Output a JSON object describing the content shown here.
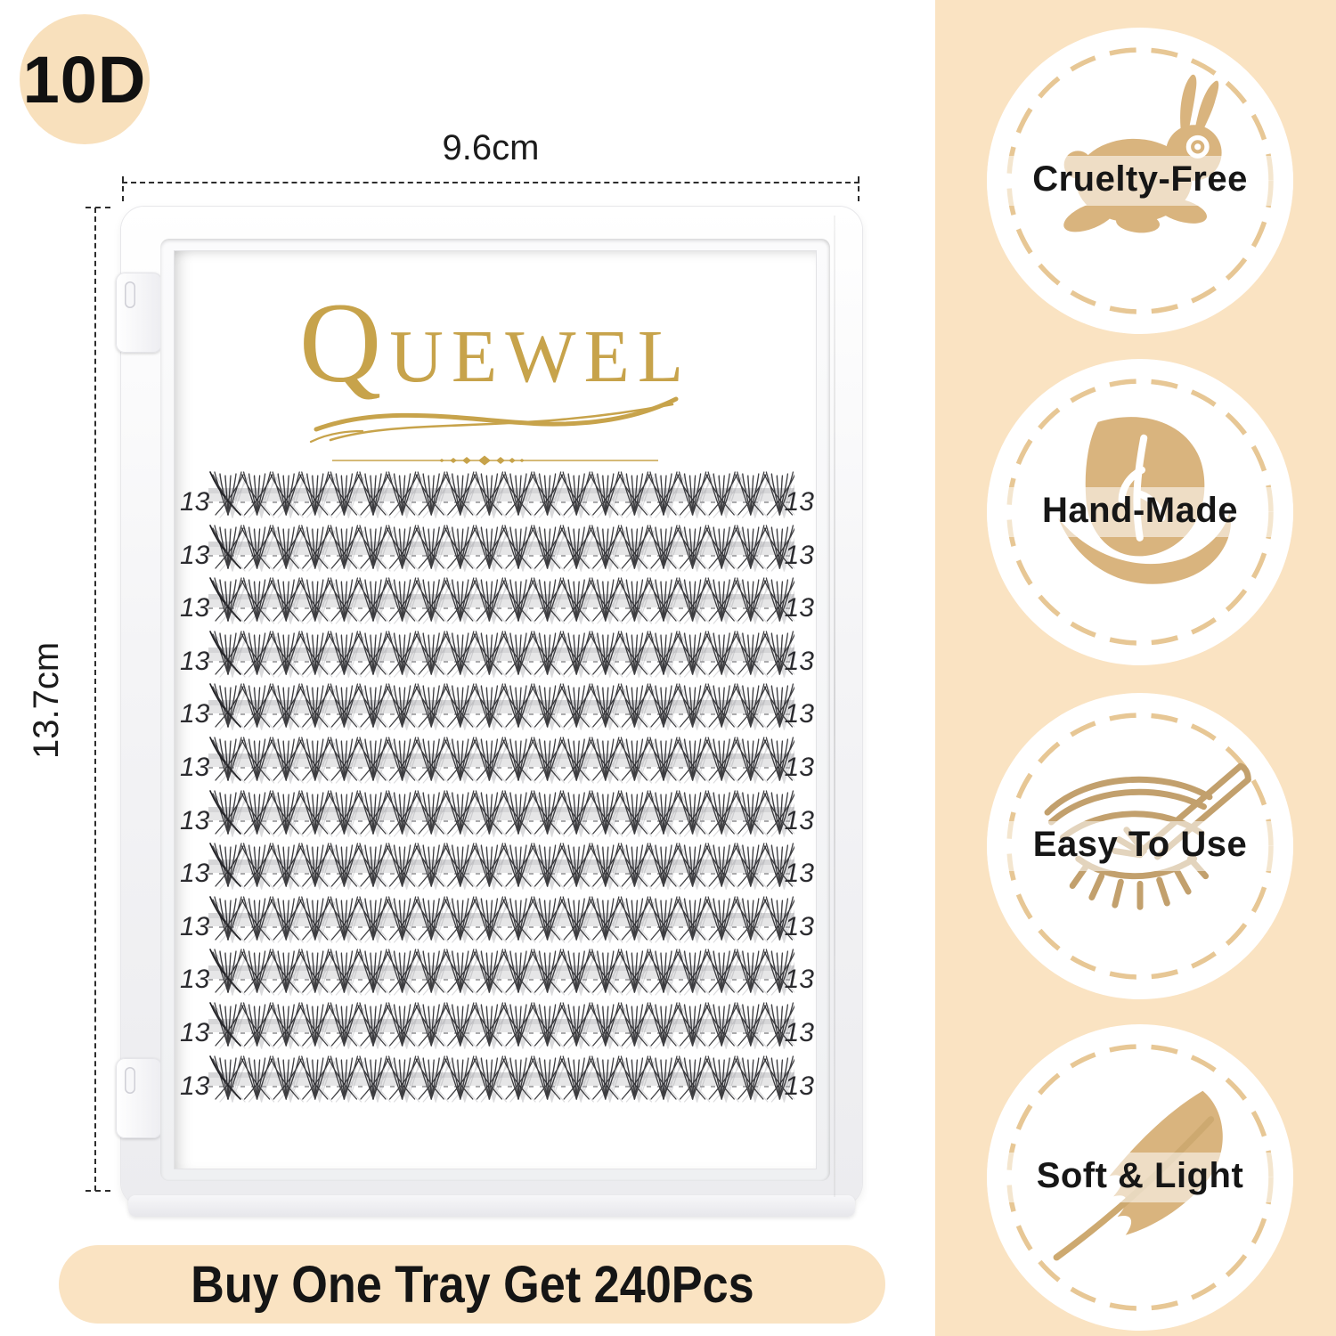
{
  "product_badge": {
    "label": "10D"
  },
  "dimensions": {
    "width_label": "9.6cm",
    "height_label": "13.7cm"
  },
  "logo": {
    "brand": "QUEWEL"
  },
  "tray": {
    "row_label": "13",
    "rows": 12,
    "clusters_per_row": 20
  },
  "banner": {
    "text": "Buy One Tray Get 240Pcs"
  },
  "sidebar": {
    "badges": [
      {
        "label": "Cruelty-Free",
        "icon": "rabbit-icon"
      },
      {
        "label": "Hand-Made",
        "icon": "leaf-in-hand-icon"
      },
      {
        "label": "Easy To Use",
        "icon": "eye-tweezer-icon"
      },
      {
        "label": "Soft & Light",
        "icon": "feather-icon"
      }
    ]
  },
  "colors": {
    "peach": "#FAE3C2",
    "gold": "#C7A34B",
    "tan_icon": "#D9B47E",
    "ring_dash": "#E7C795",
    "text": "#1A1A1A"
  }
}
